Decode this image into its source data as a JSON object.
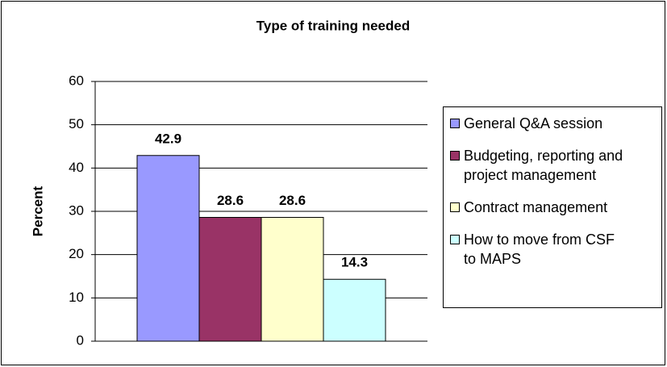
{
  "chart_data": {
    "type": "bar",
    "title": "Type of training needed",
    "y_label": "Percent",
    "categories": [
      null
    ],
    "series": [
      {
        "name": "General Q&A session",
        "color": "#9999ff",
        "values": [
          42.9
        ]
      },
      {
        "name": "Budgeting, reporting and project management",
        "color": "#993366",
        "values": [
          28.6
        ]
      },
      {
        "name": "Contract management",
        "color": "#ffffcc",
        "values": [
          28.6
        ]
      },
      {
        "name": "How to move from CSF to MAPS",
        "color": "#ccffff",
        "values": [
          14.3
        ]
      }
    ],
    "ylim": [
      0,
      60
    ],
    "yticks": [
      0,
      10,
      20,
      30,
      40,
      50,
      60
    ],
    "grid": true,
    "legend": "right"
  }
}
